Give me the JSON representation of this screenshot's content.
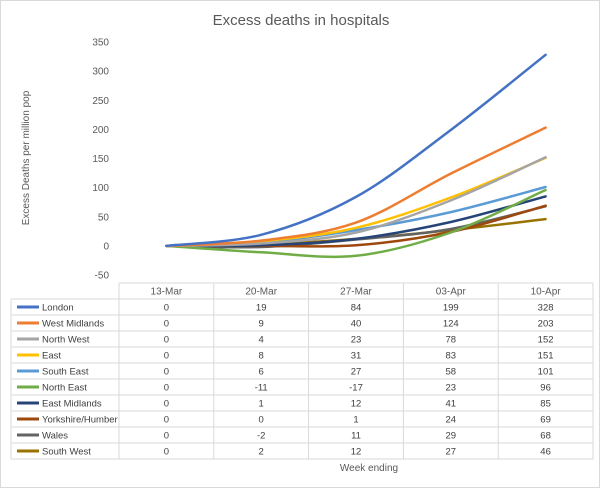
{
  "chart_data": {
    "type": "line",
    "title": "Excess deaths in hospitals",
    "xlabel": "Week ending",
    "ylabel": "Excess Deaths per million pop",
    "ylim": [
      -50,
      350
    ],
    "yticks": [
      -50,
      0,
      50,
      100,
      150,
      200,
      250,
      300,
      350
    ],
    "grid": false,
    "legend": "data-table",
    "categories": [
      "13-Mar",
      "20-Mar",
      "27-Mar",
      "03-Apr",
      "10-Apr"
    ],
    "series": [
      {
        "name": "London",
        "color": "#4472c4",
        "values": [
          0,
          19,
          84,
          199,
          328
        ]
      },
      {
        "name": "West Midlands",
        "color": "#ed7d31",
        "values": [
          0,
          9,
          40,
          124,
          203
        ]
      },
      {
        "name": "North West",
        "color": "#a5a5a5",
        "values": [
          0,
          4,
          23,
          78,
          152
        ]
      },
      {
        "name": "East",
        "color": "#ffc000",
        "values": [
          0,
          8,
          31,
          83,
          151
        ]
      },
      {
        "name": "South East",
        "color": "#5b9bd5",
        "values": [
          0,
          6,
          27,
          58,
          101
        ]
      },
      {
        "name": "North East",
        "color": "#70ad47",
        "values": [
          0,
          -11,
          -17,
          23,
          96
        ]
      },
      {
        "name": "East Midlands",
        "color": "#264478",
        "values": [
          0,
          1,
          12,
          41,
          85
        ]
      },
      {
        "name": "Yorkshire/Humber",
        "color": "#9e480e",
        "values": [
          0,
          0,
          1,
          24,
          69
        ]
      },
      {
        "name": "Wales",
        "color": "#636363",
        "values": [
          0,
          -2,
          11,
          29,
          68
        ]
      },
      {
        "name": "South West",
        "color": "#997300",
        "values": [
          0,
          2,
          12,
          27,
          46
        ]
      }
    ]
  }
}
